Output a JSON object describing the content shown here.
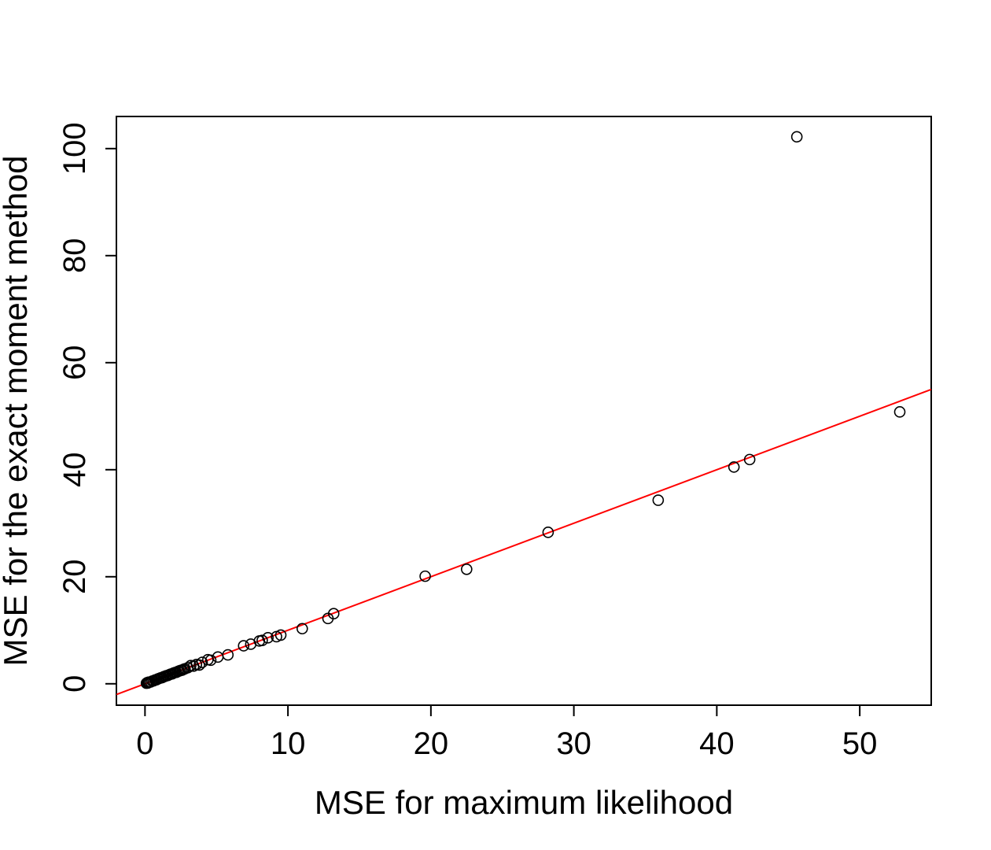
{
  "chart_data": {
    "type": "scatter",
    "title": "",
    "xlabel": "MSE for maximum likelihood",
    "ylabel": "MSE for the exact moment method",
    "xlim": [
      -2,
      55
    ],
    "ylim": [
      -4,
      106
    ],
    "x_ticks": [
      0,
      10,
      20,
      30,
      40,
      50
    ],
    "y_ticks": [
      0,
      20,
      40,
      60,
      80,
      100
    ],
    "x_tick_labels": [
      "0",
      "10",
      "20",
      "30",
      "40",
      "50"
    ],
    "y_tick_labels": [
      "0",
      "20",
      "40",
      "60",
      "80",
      "100"
    ],
    "grid": false,
    "legend": "none",
    "point_color": "#000000",
    "line_color": "#ff0000",
    "reference_line": {
      "intercept": 0,
      "slope": 1
    },
    "points": [
      {
        "x": 0.1,
        "y": 0.1
      },
      {
        "x": 0.15,
        "y": 0.2
      },
      {
        "x": 0.2,
        "y": 0.15
      },
      {
        "x": 0.25,
        "y": 0.3
      },
      {
        "x": 0.3,
        "y": 0.3
      },
      {
        "x": 0.4,
        "y": 0.35
      },
      {
        "x": 0.5,
        "y": 0.5
      },
      {
        "x": 0.6,
        "y": 0.55
      },
      {
        "x": 0.7,
        "y": 0.7
      },
      {
        "x": 0.8,
        "y": 0.75
      },
      {
        "x": 0.9,
        "y": 0.9
      },
      {
        "x": 1.0,
        "y": 1.0
      },
      {
        "x": 1.1,
        "y": 1.1
      },
      {
        "x": 1.2,
        "y": 1.15
      },
      {
        "x": 1.3,
        "y": 1.3
      },
      {
        "x": 1.4,
        "y": 1.4
      },
      {
        "x": 1.5,
        "y": 1.5
      },
      {
        "x": 1.6,
        "y": 1.55
      },
      {
        "x": 1.7,
        "y": 1.7
      },
      {
        "x": 1.8,
        "y": 1.8
      },
      {
        "x": 1.9,
        "y": 1.85
      },
      {
        "x": 2.0,
        "y": 2.0
      },
      {
        "x": 2.1,
        "y": 2.1
      },
      {
        "x": 2.2,
        "y": 2.15
      },
      {
        "x": 2.3,
        "y": 2.3
      },
      {
        "x": 2.4,
        "y": 2.4
      },
      {
        "x": 2.5,
        "y": 2.5
      },
      {
        "x": 2.6,
        "y": 2.55
      },
      {
        "x": 2.7,
        "y": 2.7
      },
      {
        "x": 2.8,
        "y": 2.8
      },
      {
        "x": 3.0,
        "y": 3.0
      },
      {
        "x": 3.2,
        "y": 3.4
      },
      {
        "x": 3.4,
        "y": 3.3
      },
      {
        "x": 3.6,
        "y": 3.6
      },
      {
        "x": 3.8,
        "y": 3.5
      },
      {
        "x": 4.0,
        "y": 4.0
      },
      {
        "x": 4.4,
        "y": 4.5
      },
      {
        "x": 4.6,
        "y": 4.4
      },
      {
        "x": 5.1,
        "y": 5.0
      },
      {
        "x": 5.8,
        "y": 5.4
      },
      {
        "x": 6.9,
        "y": 7.1
      },
      {
        "x": 7.4,
        "y": 7.4
      },
      {
        "x": 8.0,
        "y": 8.0
      },
      {
        "x": 8.2,
        "y": 8.1
      },
      {
        "x": 8.6,
        "y": 8.6
      },
      {
        "x": 9.2,
        "y": 8.8
      },
      {
        "x": 9.5,
        "y": 9.1
      },
      {
        "x": 11.0,
        "y": 10.3
      },
      {
        "x": 12.8,
        "y": 12.2
      },
      {
        "x": 13.2,
        "y": 13.1
      },
      {
        "x": 19.6,
        "y": 20.1
      },
      {
        "x": 22.5,
        "y": 21.4
      },
      {
        "x": 28.2,
        "y": 28.3
      },
      {
        "x": 35.9,
        "y": 34.3
      },
      {
        "x": 41.2,
        "y": 40.5
      },
      {
        "x": 42.3,
        "y": 41.9
      },
      {
        "x": 45.6,
        "y": 102.2
      },
      {
        "x": 52.8,
        "y": 50.8
      }
    ]
  }
}
